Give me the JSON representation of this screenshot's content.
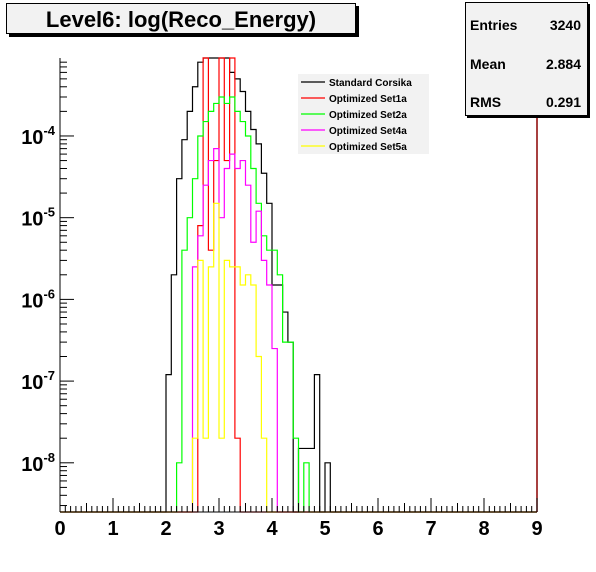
{
  "title": "Level6:  log(Reco_Energy)",
  "stats": [
    {
      "label": "Entries",
      "value": "3240"
    },
    {
      "label": "Mean",
      "value": "2.884"
    },
    {
      "label": "RMS",
      "value": "0.291"
    }
  ],
  "chart_data": {
    "type": "histogram",
    "title": "Level6:  log(Reco_Energy)",
    "xlabel": "",
    "ylabel": "",
    "xlim": [
      0,
      9
    ],
    "ylim": [
      2.5e-09,
      0.0009
    ],
    "y_scale": "log",
    "bin_width": 0.1,
    "x_ticks": [
      "0",
      "1",
      "2",
      "3",
      "4",
      "5",
      "6",
      "7",
      "8",
      "9"
    ],
    "y_ticks": [
      {
        "value": 1e-08,
        "base": "10",
        "exp": "-8"
      },
      {
        "value": 1e-07,
        "base": "10",
        "exp": "-7"
      },
      {
        "value": 1e-06,
        "base": "10",
        "exp": "-6"
      },
      {
        "value": 1e-05,
        "base": "10",
        "exp": "-5"
      },
      {
        "value": 0.0001,
        "base": "10",
        "exp": "-4"
      }
    ],
    "grid": false,
    "legend_position": "top-right",
    "series": [
      {
        "name": "Standard Corsika",
        "color": "#000000",
        "bins": [
          [
            2.0,
            1.2e-07
          ],
          [
            2.1,
            2e-06
          ],
          [
            2.2,
            3e-05
          ],
          [
            2.3,
            9e-05
          ],
          [
            2.4,
            0.0002
          ],
          [
            2.5,
            0.0004
          ],
          [
            2.6,
            0.0008
          ],
          [
            2.7,
            0.00095
          ],
          [
            2.8,
            0.00095
          ],
          [
            2.9,
            0.0009
          ],
          [
            3.0,
            0.00095
          ],
          [
            3.1,
            0.00095
          ],
          [
            3.2,
            0.0006
          ],
          [
            3.3,
            0.0005
          ],
          [
            3.4,
            0.00035
          ],
          [
            3.5,
            0.0002
          ],
          [
            3.6,
            0.00012
          ],
          [
            3.7,
            8e-05
          ],
          [
            3.8,
            3.5e-05
          ],
          [
            3.9,
            1.5e-05
          ],
          [
            4.0,
            1.5e-06
          ],
          [
            4.1,
            1.5e-06
          ],
          [
            4.2,
            7e-07
          ],
          [
            4.3,
            3e-07
          ],
          [
            4.4,
            2.5e-09
          ],
          [
            4.5,
            1.5e-08
          ],
          [
            4.6,
            1.5e-08
          ],
          [
            4.7,
            1.5e-08
          ],
          [
            4.8,
            1.2e-07
          ],
          [
            4.9,
            2.5e-09
          ],
          [
            5.0,
            1e-08
          ]
        ]
      },
      {
        "name": "Optimized Set1a",
        "color": "#ff0000",
        "bins": [
          [
            2.6,
            8e-06
          ],
          [
            2.7,
            0.0012
          ],
          [
            2.8,
            4e-06
          ],
          [
            2.9,
            5e-05
          ],
          [
            3.0,
            0.0012
          ],
          [
            3.1,
            5e-05
          ],
          [
            3.2,
            0.0012
          ],
          [
            3.3,
            2e-08
          ]
        ]
      },
      {
        "name": "Optimized Set2a",
        "color": "#00ff00",
        "bins": [
          [
            2.2,
            1e-08
          ],
          [
            2.3,
            4e-06
          ],
          [
            2.4,
            1e-05
          ],
          [
            2.5,
            3e-05
          ],
          [
            2.6,
            0.0001
          ],
          [
            2.7,
            0.00015
          ],
          [
            2.8,
            0.0002
          ],
          [
            2.9,
            0.00025
          ],
          [
            3.0,
            0.0003
          ],
          [
            3.1,
            0.00025
          ],
          [
            3.2,
            0.0003
          ],
          [
            3.3,
            0.0002
          ],
          [
            3.4,
            0.00015
          ],
          [
            3.5,
            0.0001
          ],
          [
            3.6,
            4e-05
          ],
          [
            3.7,
            1.5e-05
          ],
          [
            3.8,
            6e-06
          ],
          [
            3.9,
            4e-06
          ],
          [
            4.0,
            4e-06
          ],
          [
            4.1,
            2e-06
          ],
          [
            4.2,
            3e-07
          ],
          [
            4.3,
            3e-07
          ],
          [
            4.4,
            2e-08
          ],
          [
            4.5,
            2.5e-09
          ],
          [
            4.6,
            1e-08
          ]
        ]
      },
      {
        "name": "Optimized Set4a",
        "color": "#ff00ff",
        "bins": [
          [
            2.5,
            2.5e-06
          ],
          [
            2.6,
            6e-06
          ],
          [
            2.7,
            2.5e-05
          ],
          [
            2.8,
            5e-05
          ],
          [
            2.9,
            7e-05
          ],
          [
            3.0,
            1e-05
          ],
          [
            3.1,
            4e-05
          ],
          [
            3.2,
            6e-05
          ],
          [
            3.3,
            4e-05
          ],
          [
            3.4,
            5e-05
          ],
          [
            3.5,
            2.5e-05
          ],
          [
            3.6,
            5e-06
          ],
          [
            3.7,
            1.2e-05
          ],
          [
            3.8,
            3e-06
          ],
          [
            3.9,
            1.5e-06
          ],
          [
            4.0,
            2.5e-07
          ]
        ]
      },
      {
        "name": "Optimized Set5a",
        "color": "#ffff00",
        "bins": [
          [
            2.5,
            2e-08
          ],
          [
            2.6,
            3e-06
          ],
          [
            2.7,
            2e-08
          ],
          [
            2.8,
            2.5e-06
          ],
          [
            2.9,
            1.5e-05
          ],
          [
            3.0,
            2e-08
          ],
          [
            3.1,
            3e-06
          ],
          [
            3.2,
            2.5e-06
          ],
          [
            3.3,
            2.5e-06
          ],
          [
            3.4,
            1.5e-06
          ],
          [
            3.5,
            2e-06
          ],
          [
            3.6,
            1.5e-06
          ],
          [
            3.7,
            2e-07
          ],
          [
            3.8,
            2e-08
          ]
        ]
      }
    ]
  }
}
